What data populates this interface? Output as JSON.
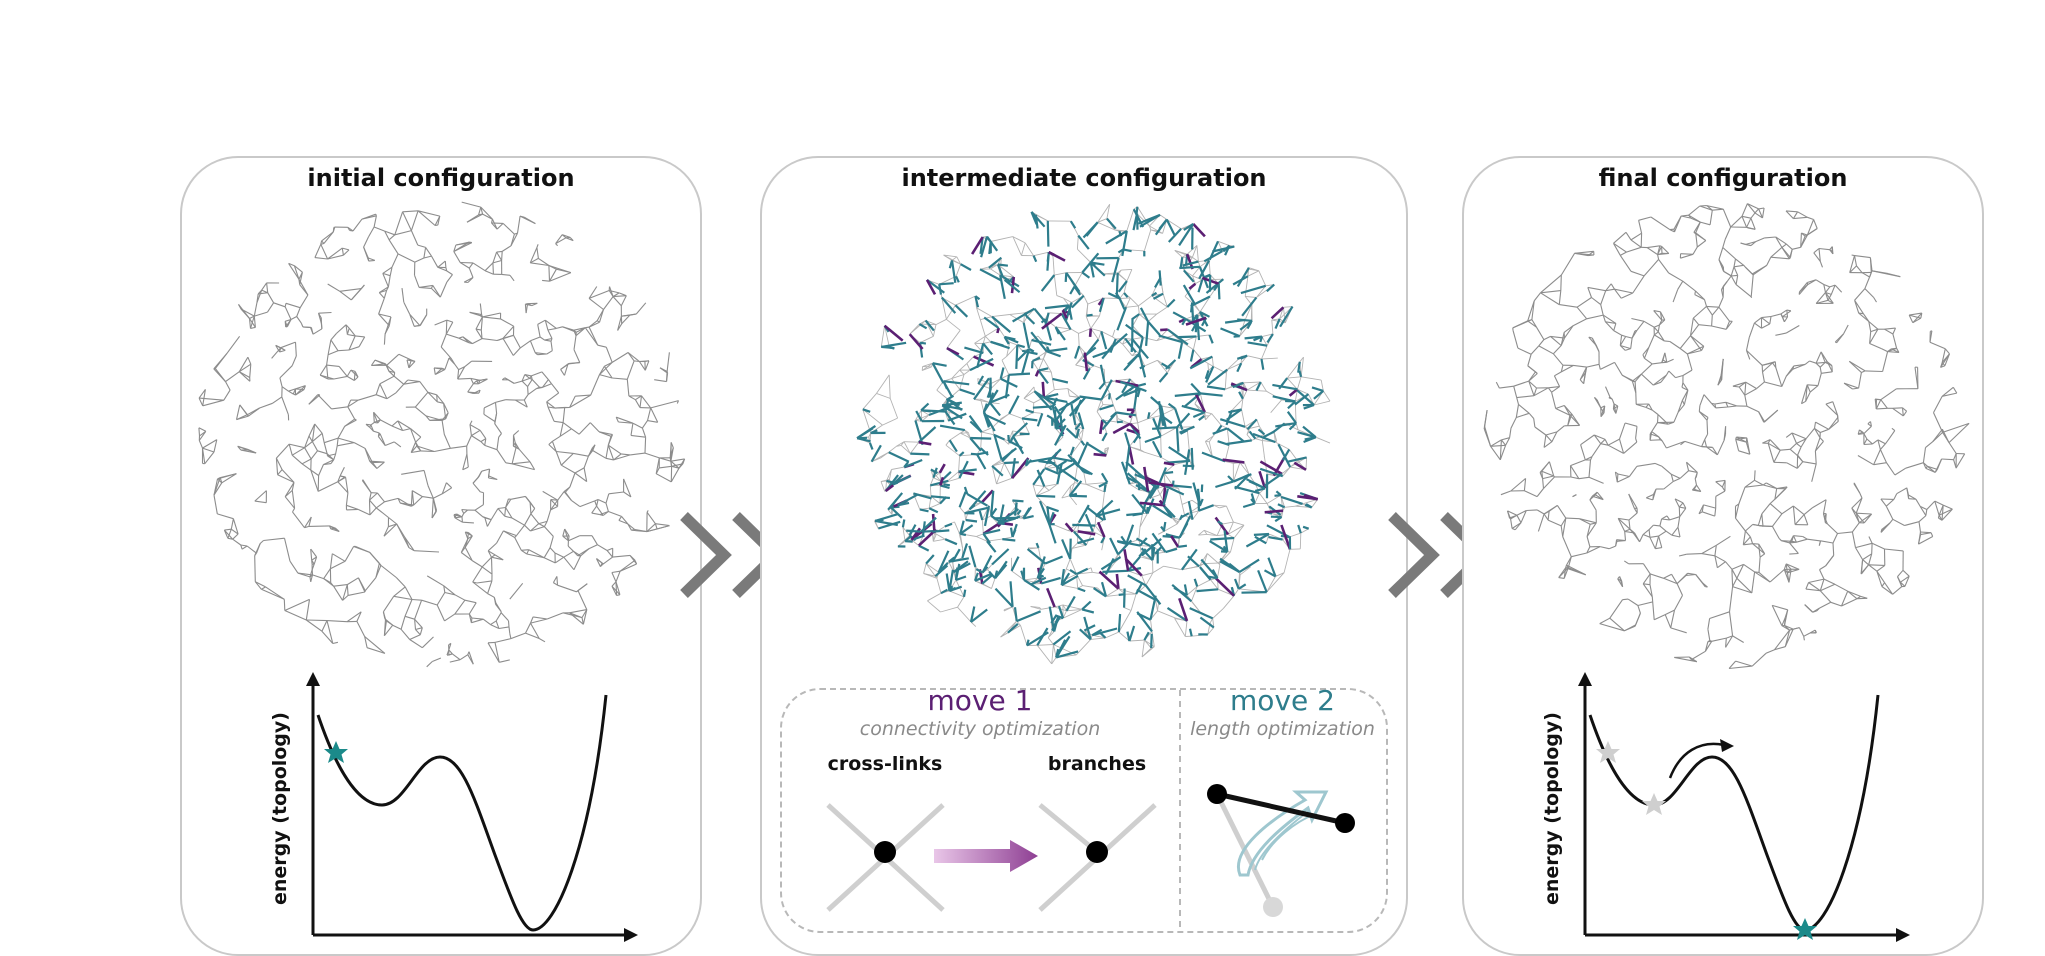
{
  "panels": {
    "initial": {
      "title": "initial configuration",
      "energy_label": "energy (topology)"
    },
    "intermediate": {
      "title": "intermediate configuration",
      "move1": {
        "title": "move 1",
        "subtitle": "connectivity optimization",
        "left_label": "cross-links",
        "right_label": "branches"
      },
      "move2": {
        "title": "move 2",
        "subtitle": "length optimization"
      }
    },
    "final": {
      "title": "final configuration",
      "energy_label": "energy (topology)"
    }
  },
  "colors": {
    "network": "#8c8c8c",
    "teal": "#2e7d8c",
    "purple": "#5b1f73",
    "marker_teal": "#1b8a8a",
    "marker_gray": "#cfcfcf",
    "chevron": "#7a7a7a",
    "panel_border": "#c9c9c9"
  }
}
